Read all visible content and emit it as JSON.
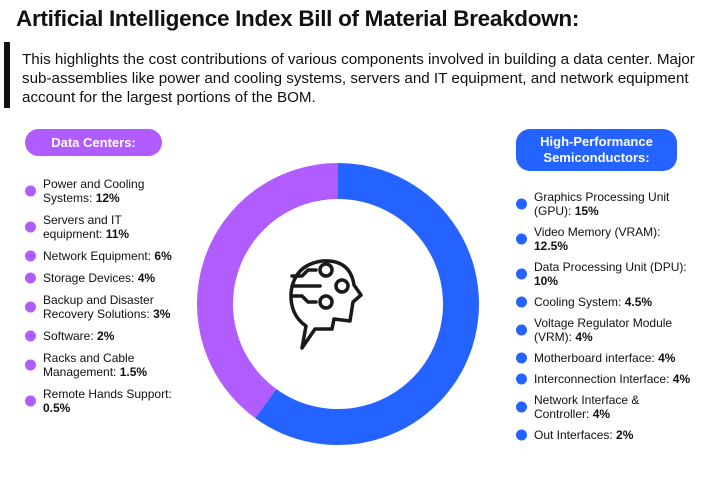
{
  "title": "Artificial Intelligence Index Bill of Material Breakdown:",
  "description": "This highlights the cost contributions of various components involved in building a data center. Major sub-assemblies like power and cooling systems, servers and IT equipment, and network equipment account for the largest portions of the BOM.",
  "colors": {
    "data_centers": "#b05cff",
    "semiconductors": "#2463ff"
  },
  "center_icon": "ai-head-circuit-icon",
  "chart_data": {
    "type": "pie",
    "variant": "donut",
    "series": [
      {
        "name": "Data Centers:",
        "color": "#b05cff",
        "items": [
          {
            "label": "Power and Cooling Systems:",
            "value": "12%",
            "num": 12
          },
          {
            "label": "Servers and IT equipment:",
            "value": "11%",
            "num": 11
          },
          {
            "label": "Network Equipment:",
            "value": "6%",
            "num": 6
          },
          {
            "label": "Storage Devices:",
            "value": "4%",
            "num": 4
          },
          {
            "label": "Backup and Disaster Recovery Solutions:",
            "value": "3%",
            "num": 3
          },
          {
            "label": "Software:",
            "value": "2%",
            "num": 2
          },
          {
            "label": "Racks and Cable Management:",
            "value": "1.5%",
            "num": 1.5
          },
          {
            "label": "Remote Hands Support:",
            "value": "0.5%",
            "num": 0.5
          }
        ]
      },
      {
        "name": "High-Performance Semiconductors:",
        "color": "#2463ff",
        "items": [
          {
            "label": "Graphics Processing Unit (GPU):",
            "value": "15%",
            "num": 15
          },
          {
            "label": "Video Memory (VRAM):",
            "value": "12.5%",
            "num": 12.5
          },
          {
            "label": "Data Processing Unit (DPU):",
            "value": "10%",
            "num": 10
          },
          {
            "label": "Cooling System:",
            "value": "4.5%",
            "num": 4.5
          },
          {
            "label": "Voltage Regulator Module (VRM):",
            "value": "4%",
            "num": 4
          },
          {
            "label": "Motherboard interface:",
            "value": "4%",
            "num": 4
          },
          {
            "label": "Interconnection Interface:",
            "value": "4%",
            "num": 4
          },
          {
            "label": "Network Interface & Controller:",
            "value": "4%",
            "num": 4
          },
          {
            "label": "Out Interfaces:",
            "value": "2%",
            "num": 2
          }
        ]
      }
    ],
    "totals": {
      "Data Centers": 40,
      "High-Performance Semiconductors": 60
    }
  }
}
